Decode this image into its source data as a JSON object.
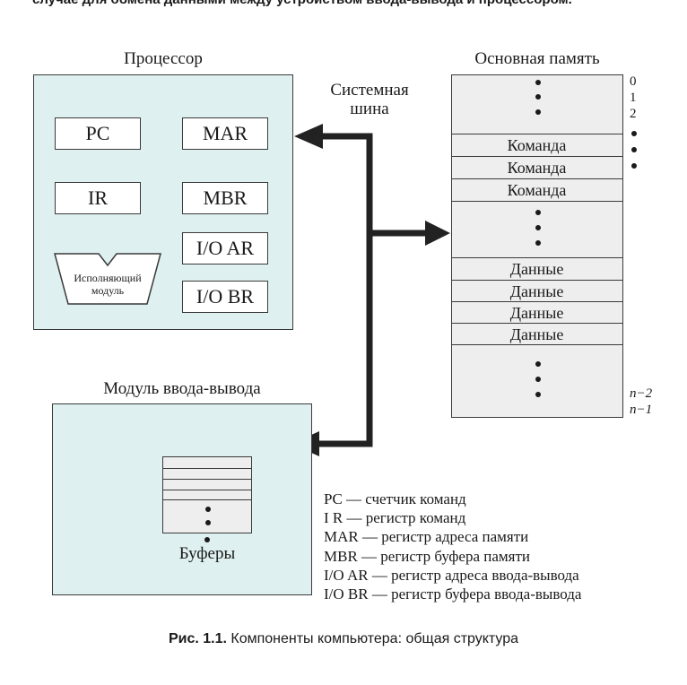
{
  "top_text": "случае для обмена данными между устройством ввода-вывода и процессором.",
  "processor": {
    "title": "Процессор",
    "registers": [
      "PC",
      "MAR",
      "IR",
      "MBR",
      "I/O AR",
      "I/O BR"
    ],
    "exec_unit_line1": "Исполняющий",
    "exec_unit_line2": "модуль"
  },
  "system_bus": {
    "line1": "Системная",
    "line2": "шина"
  },
  "memory": {
    "title": "Основная память",
    "command_label": "Команда",
    "data_label": "Данные",
    "addresses": [
      "0",
      "1",
      "2",
      "n−2",
      "n−1"
    ]
  },
  "io_module": {
    "title": "Модуль ввода-вывода",
    "buffers_label": "Буферы"
  },
  "legend": [
    "PC — счетчик команд",
    "I R — регистр команд",
    "MAR — регистр адреса памяти",
    "MBR — регистр буфера памяти",
    "I/O AR — регистр адреса ввода-вывода",
    "I/O BR — регистр буфера ввода-вывода"
  ],
  "caption": {
    "prefix": "Рис. 1.1.",
    "text": "Компоненты компьютера: общая структура"
  },
  "colors": {
    "box_fill": "#dff0f0",
    "memory_fill": "#eeeeee",
    "bus": "#222222"
  }
}
